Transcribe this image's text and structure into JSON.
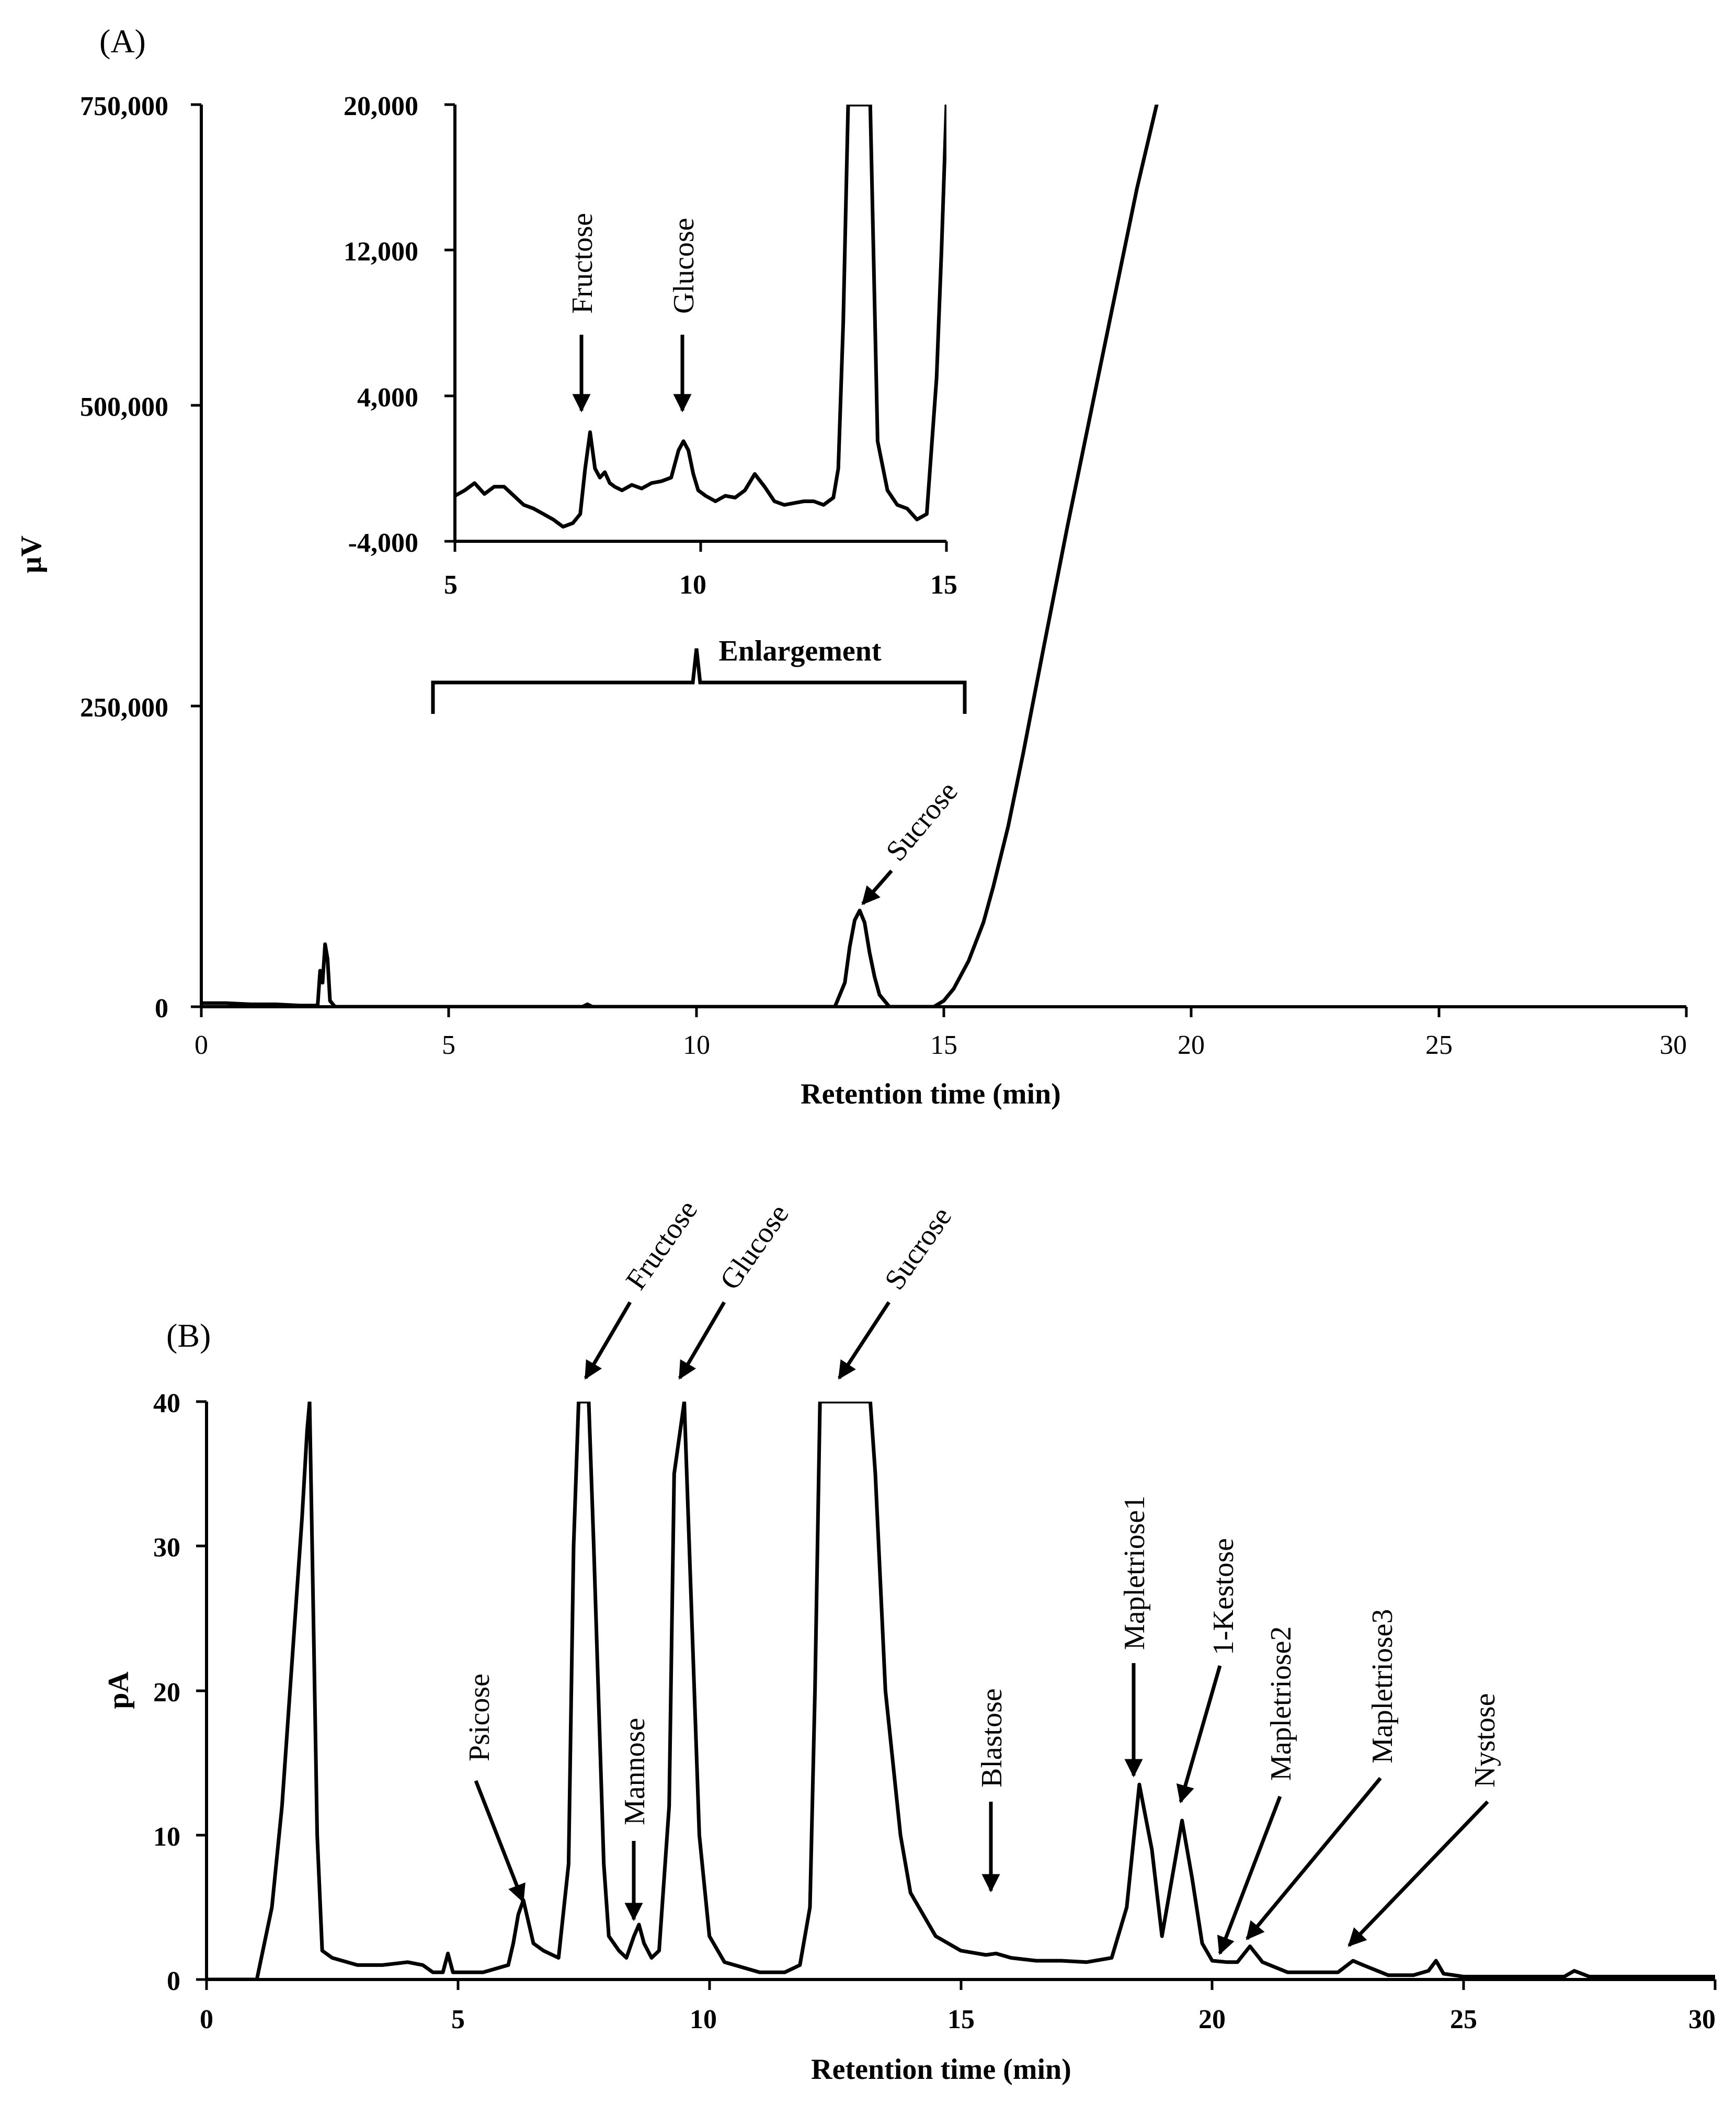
{
  "chart_data": [
    {
      "panel_label": "(A)",
      "type": "line",
      "xlabel": "Retention time (min)",
      "ylabel": "μV",
      "xlim": [
        0,
        30
      ],
      "ylim": [
        0,
        750000
      ],
      "xticks": [
        "0",
        "5",
        "10",
        "15",
        "20",
        "25",
        "30"
      ],
      "yticks": [
        "0",
        "250,000",
        "500,000",
        "750,000"
      ],
      "x": [
        0,
        0.5,
        1.0,
        1.5,
        2.0,
        2.35,
        2.4,
        2.45,
        2.5,
        2.55,
        2.6,
        2.7,
        5,
        7.7,
        7.8,
        7.9,
        10,
        12.8,
        13.0,
        13.1,
        13.2,
        13.3,
        13.4,
        13.5,
        13.6,
        13.7,
        13.9,
        14.5,
        14.8,
        15.0,
        15.2,
        15.5,
        15.8,
        16.0,
        16.3,
        16.6,
        17.0,
        17.5,
        18.0,
        18.5,
        18.9,
        19.3
      ],
      "y": [
        3000,
        3000,
        2000,
        2000,
        1000,
        1000,
        30000,
        20000,
        52000,
        40000,
        5000,
        0,
        0,
        0,
        2000,
        0,
        0,
        0,
        20000,
        50000,
        72000,
        80000,
        70000,
        45000,
        25000,
        10000,
        0,
        0,
        0,
        5000,
        15000,
        38000,
        70000,
        100000,
        150000,
        210000,
        295000,
        400000,
        500000,
        600000,
        680000,
        750000
      ],
      "annotations": [
        {
          "text": "Sucrose",
          "x": 13.2
        }
      ],
      "bracket": {
        "text": "Enlargement",
        "x_range": [
          5,
          15
        ]
      },
      "inset": {
        "type": "line",
        "xlim": [
          5,
          15
        ],
        "ylim": [
          -4000,
          20000
        ],
        "xticks": [
          "5",
          "10",
          "15"
        ],
        "yticks": [
          "-4,000",
          "4,000",
          "12,000",
          "20,000"
        ],
        "x": [
          5.0,
          5.2,
          5.4,
          5.6,
          5.8,
          6.0,
          6.2,
          6.4,
          6.6,
          6.8,
          7.0,
          7.2,
          7.4,
          7.55,
          7.65,
          7.75,
          7.85,
          7.95,
          8.05,
          8.15,
          8.25,
          8.4,
          8.6,
          8.8,
          9.0,
          9.2,
          9.4,
          9.55,
          9.65,
          9.75,
          9.85,
          9.95,
          10.1,
          10.3,
          10.5,
          10.7,
          10.9,
          11.1,
          11.3,
          11.5,
          11.7,
          11.9,
          12.1,
          12.3,
          12.5,
          12.7,
          12.8,
          12.9,
          13.0,
          13.05,
          13.4,
          13.45,
          13.6,
          13.8,
          14.0,
          14.2,
          14.4,
          14.6,
          14.8,
          14.9,
          15.0
        ],
        "y": [
          -1500,
          -1200,
          -800,
          -1400,
          -1000,
          -1000,
          -1500,
          -2000,
          -2200,
          -2500,
          -2800,
          -3200,
          -3000,
          -2500,
          0,
          2000,
          0,
          -500,
          -200,
          -800,
          -1000,
          -1200,
          -900,
          -1100,
          -800,
          -700,
          -500,
          1000,
          1500,
          1000,
          -300,
          -1200,
          -1500,
          -1800,
          -1500,
          -1600,
          -1200,
          -300,
          -1000,
          -1800,
          -2000,
          -1900,
          -1800,
          -1800,
          -2000,
          -1600,
          0,
          8000,
          20000,
          20000,
          20000,
          20000,
          1500,
          -1200,
          -2000,
          -2200,
          -2800,
          -2500,
          5000,
          12000,
          20000
        ],
        "annotations": [
          {
            "text": "Fructose",
            "x": 7.7
          },
          {
            "text": "Glucose",
            "x": 9.7
          }
        ]
      }
    },
    {
      "panel_label": "(B)",
      "type": "line",
      "xlabel": "Retention time (min)",
      "ylabel": "pA",
      "xlim": [
        0,
        30
      ],
      "ylim": [
        0,
        40
      ],
      "xticks": [
        "0",
        "5",
        "10",
        "15",
        "20",
        "25",
        "30"
      ],
      "yticks": [
        "0",
        "10",
        "20",
        "30",
        "40"
      ],
      "x": [
        0,
        1.0,
        1.3,
        1.5,
        1.7,
        1.9,
        2.0,
        2.05,
        2.1,
        2.2,
        2.3,
        2.5,
        3.0,
        3.5,
        4.0,
        4.3,
        4.5,
        4.7,
        4.8,
        4.9,
        5.0,
        5.5,
        6.0,
        6.1,
        6.2,
        6.3,
        6.4,
        6.5,
        6.7,
        7.0,
        7.2,
        7.3,
        7.4,
        7.6,
        7.7,
        7.9,
        8.0,
        8.2,
        8.35,
        8.5,
        8.6,
        8.7,
        8.85,
        9.0,
        9.2,
        9.3,
        9.5,
        9.6,
        9.8,
        10.0,
        10.3,
        10.5,
        11.0,
        11.5,
        11.8,
        12.0,
        12.1,
        12.2,
        12.3,
        13.2,
        13.3,
        13.5,
        13.8,
        14.0,
        14.5,
        15.0,
        15.5,
        15.7,
        16.0,
        16.5,
        17.0,
        17.5,
        18.0,
        18.3,
        18.55,
        18.8,
        19.0,
        19.2,
        19.4,
        19.6,
        19.8,
        20.0,
        20.3,
        20.5,
        20.75,
        21.0,
        21.5,
        22.0,
        22.5,
        22.8,
        23.0,
        23.5,
        24.0,
        24.3,
        24.45,
        24.6,
        25.0,
        26.0,
        27.0,
        27.2,
        27.5,
        28.0,
        29.0,
        30.0
      ],
      "y": [
        0,
        0,
        5,
        12,
        22,
        32,
        38,
        40,
        30,
        10,
        2,
        1.5,
        1,
        1,
        1.2,
        1,
        0.5,
        0.5,
        1.8,
        0.5,
        0.5,
        0.5,
        1,
        2.5,
        4.5,
        5.5,
        4,
        2.5,
        2,
        1.5,
        8,
        30,
        40,
        40,
        30,
        8,
        3,
        2,
        1.5,
        3,
        3.8,
        2.5,
        1.5,
        2,
        12,
        35,
        40,
        30,
        10,
        3,
        1.2,
        1,
        0.5,
        0.5,
        1,
        5,
        20,
        40,
        40,
        40,
        35,
        20,
        10,
        6,
        3,
        2,
        1.7,
        1.8,
        1.5,
        1.3,
        1.3,
        1.2,
        1.5,
        5,
        13.5,
        9,
        3,
        7,
        11,
        7,
        2.5,
        1.3,
        1.2,
        1.2,
        2.3,
        1.2,
        0.5,
        0.5,
        0.5,
        1.3,
        1,
        0.3,
        0.3,
        0.6,
        1.3,
        0.4,
        0.2,
        0.2,
        0.2,
        0.6,
        0.2,
        0.2,
        0.2,
        0.2
      ],
      "annotations": [
        {
          "text": "Psicose",
          "x": 6.3
        },
        {
          "text": "Fructose",
          "x": 7.5
        },
        {
          "text": "Mannose",
          "x": 8.6
        },
        {
          "text": "Glucose",
          "x": 9.4
        },
        {
          "text": "Sucrose",
          "x": 12.5
        },
        {
          "text": "Blastose",
          "x": 15.6
        },
        {
          "text": "Mapletriose1",
          "x": 18.5
        },
        {
          "text": "1-Kestose",
          "x": 19.4
        },
        {
          "text": "Mapletriose2",
          "x": 20.3
        },
        {
          "text": "Mapletriose3",
          "x": 20.8
        },
        {
          "text": "Nystose",
          "x": 22.8
        }
      ]
    }
  ]
}
